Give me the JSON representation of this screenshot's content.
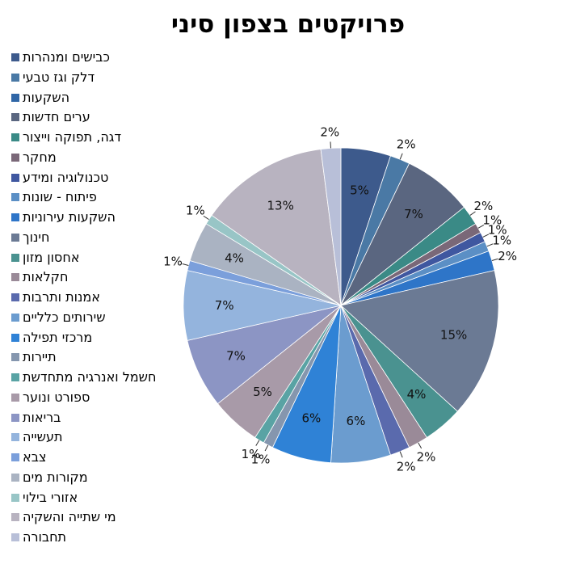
{
  "chart_data": {
    "type": "pie",
    "title": "פרויקטים בצפון סיני",
    "legend_position": "left",
    "categories": [
      "כבישים ומנהרות",
      "דלק וגז טבעי",
      "השקעות",
      "ערים חדשות",
      "דגה, תפוקה וייצור",
      "מחקר",
      "טכנולוגיה ומידע",
      "פיתוח - שונות",
      "השקעות עירוניות",
      "חינוך",
      "אחסון מזון",
      "חקלאות",
      "אמנות ותרבות",
      "שירותים כלליים",
      "מרכזי תפילה",
      "תיירות",
      "חשמל ואנרגיה מתחדשת",
      "ספורט ונוער",
      "בריאות",
      "תעשייה",
      "צבא",
      "מקורות מים",
      "אזורי בילוי",
      "מי שתייה והשקיה",
      "תחבורה"
    ],
    "values": [
      5,
      2,
      0,
      7,
      2,
      1,
      1,
      1,
      2,
      15,
      4,
      2,
      2,
      6,
      6,
      1,
      1,
      5,
      7,
      7,
      1,
      4,
      1,
      13,
      2
    ],
    "labels": [
      "5%",
      "2%",
      "",
      "7%",
      "2%",
      "1%",
      "1%",
      "1%",
      "2%",
      "15%",
      "4%",
      "2%",
      "2%",
      "6%",
      "6%",
      "1%",
      "1%",
      "5%",
      "7%",
      "7%",
      "1%",
      "4%",
      "1%",
      "13%",
      "2%"
    ],
    "colors": [
      "#3d5a8c",
      "#4a79a5",
      "#2f66a6",
      "#5a6680",
      "#3a8a86",
      "#7a6878",
      "#3f57a0",
      "#5b8fc5",
      "#2e75c8",
      "#6b7a94",
      "#4a9290",
      "#9a8a98",
      "#5a6aad",
      "#6b9ccf",
      "#2f82d6",
      "#8596ae",
      "#59a3a4",
      "#a89aa8",
      "#8c95c4",
      "#94b4dd",
      "#7b9fdb",
      "#aab3c2",
      "#98c5c6",
      "#b8b3c0",
      "#b8bfd8"
    ]
  }
}
